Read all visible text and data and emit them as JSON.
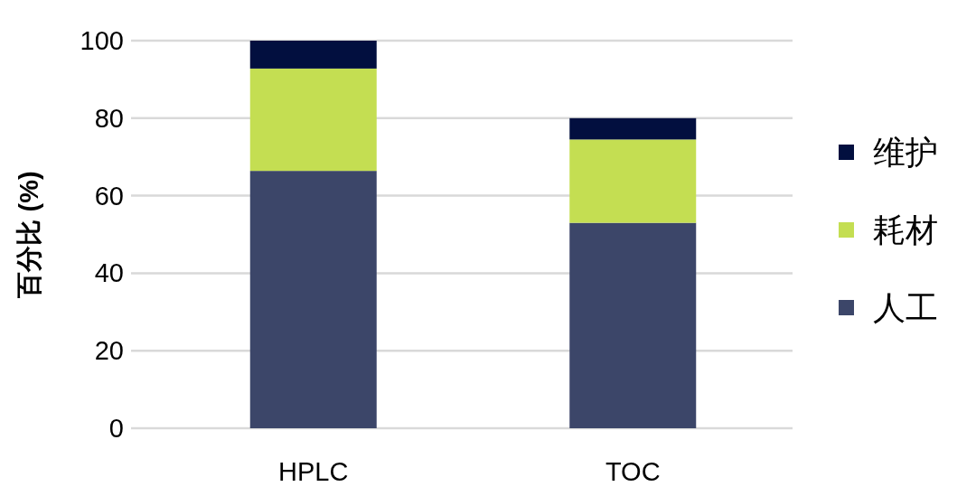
{
  "chart_data": {
    "type": "bar",
    "stacked": true,
    "ylabel": "百分比 (%)",
    "categories": [
      "HPLC",
      "TOC"
    ],
    "series": [
      {
        "name": "人工",
        "color": "#3c4669",
        "values": [
          66.4,
          53.0
        ]
      },
      {
        "name": "耗材",
        "color": "#c4de52",
        "values": [
          26.4,
          21.5
        ]
      },
      {
        "name": "维护",
        "color": "#020f3f",
        "values": [
          7.2,
          5.5
        ]
      }
    ],
    "ylim": [
      0,
      100
    ],
    "yticks": [
      0,
      20,
      40,
      60,
      80,
      100
    ],
    "grid": "y",
    "legend": "right"
  }
}
